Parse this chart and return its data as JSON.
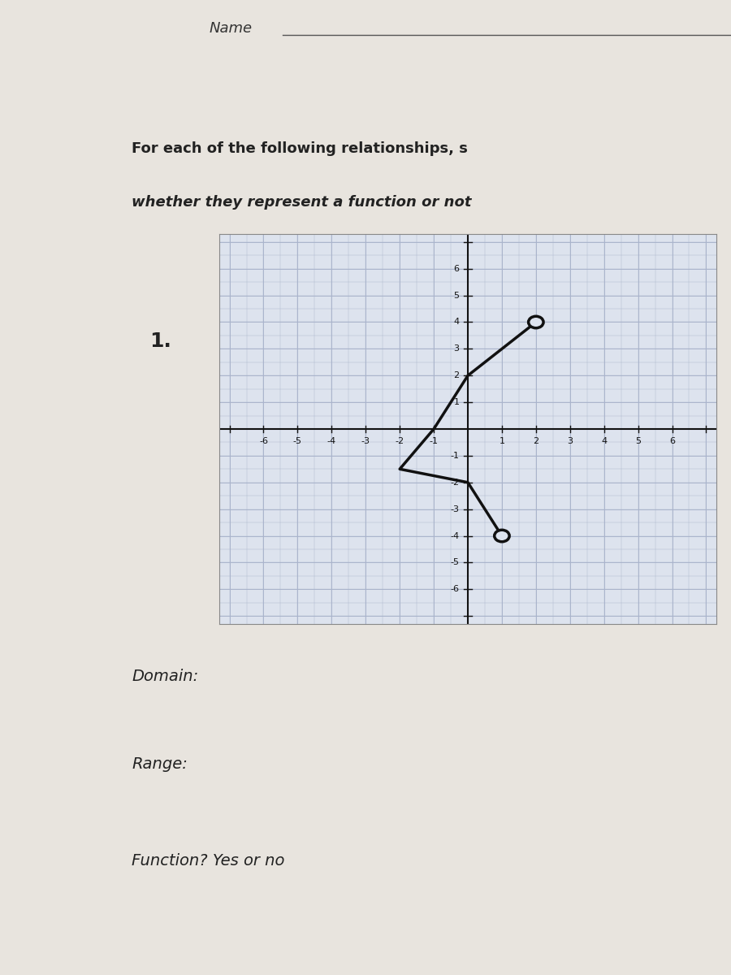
{
  "title_line1": "For each of the following relationships, s",
  "title_line2": "whether they represent a function or not",
  "problem_number": "1.",
  "domain_label": "Domain:",
  "range_label": "Range:",
  "function_label": "Function? Yes or no",
  "graph_xlim": [
    -7,
    7
  ],
  "graph_ylim": [
    -7,
    7
  ],
  "name_label": "Name",
  "left_sidebar_color": "#5a5550",
  "header_bg": "#1a1a1a",
  "grid_color": "#aab4cc",
  "axis_color": "#111111",
  "line_color": "#111111",
  "line_width": 2.5,
  "zigzag_points": [
    [
      2,
      4
    ],
    [
      0,
      2
    ],
    [
      -1,
      0
    ],
    [
      -2,
      -1.5
    ],
    [
      0,
      -2
    ],
    [
      1,
      -4
    ]
  ],
  "open_circles": [
    [
      2,
      4
    ],
    [
      1,
      -4
    ]
  ],
  "tick_fontsize": 8,
  "label_fontsize": 13,
  "header_text_color": "#ffffff",
  "body_text_color": "#222222",
  "paper_color": "#e8e4de",
  "content_color": "#dedad4",
  "graph_bg": "#dde3ee"
}
